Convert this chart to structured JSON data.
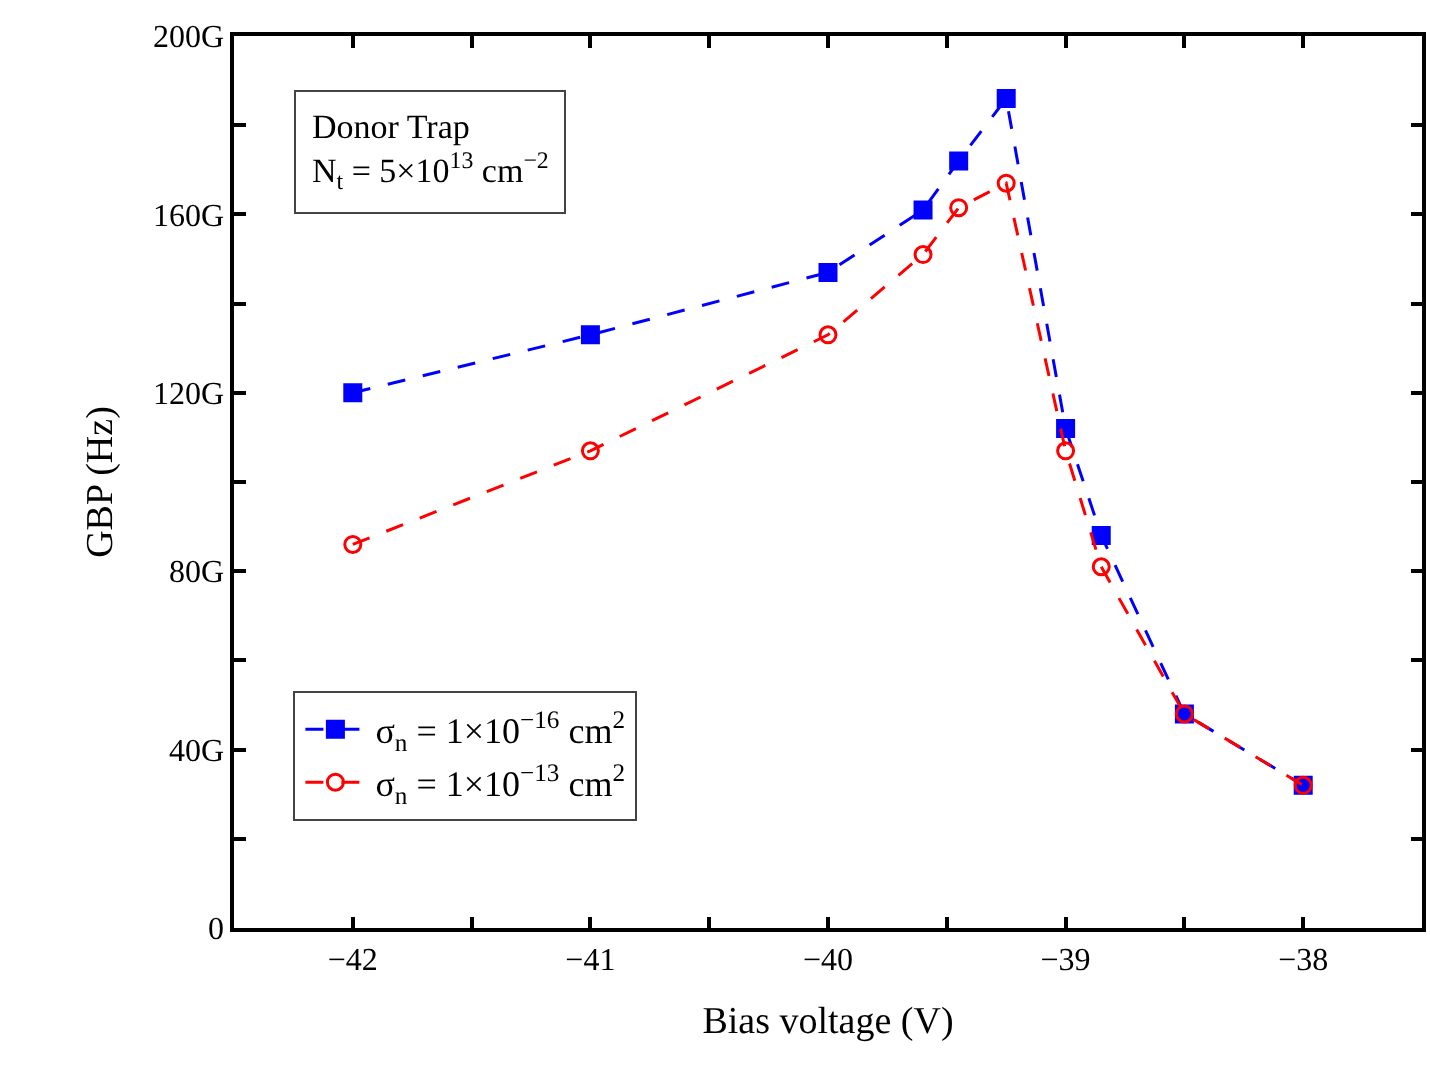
{
  "chart_data": {
    "type": "line",
    "xlabel": "Bias voltage (V)",
    "ylabel": "GBP (Hz)",
    "xlim": [
      -42.5,
      -37.5
    ],
    "xticks": [
      -42,
      {
        "value": -41.5,
        "label": null
      },
      -41,
      {
        "value": -40.5,
        "label": null
      },
      -40,
      {
        "value": -39.5,
        "label": null
      },
      -39,
      {
        "value": -38.5,
        "label": null
      },
      -38
    ],
    "ylim": [
      0,
      200
    ],
    "yticks": [
      0,
      {
        "value": 20,
        "label": null
      },
      {
        "value": 40,
        "label": "40G"
      },
      {
        "value": 60,
        "label": null
      },
      {
        "value": 80,
        "label": "80G"
      },
      {
        "value": 100,
        "label": null
      },
      {
        "value": 120,
        "label": "120G"
      },
      {
        "value": 140,
        "label": null
      },
      {
        "value": 160,
        "label": "160G"
      },
      {
        "value": 180,
        "label": null
      },
      {
        "value": 200,
        "label": "200G"
      }
    ],
    "legend": "bottom left",
    "line_style": "dashed",
    "annotations": [
      "Donor Trap",
      "N$_{t}$ = 5×10$^{13}$ cm$^{−2}$"
    ],
    "series": [
      {
        "name": "σ$_{n}$ = 1×10$^{−16}$ cm$^{2}$",
        "color": "#0000ff",
        "marker": "square",
        "x": [
          -42,
          -41,
          -40,
          -39.6,
          -39.45,
          -39.25,
          -39,
          -38.85,
          -38.5,
          -38
        ],
        "values": [
          120,
          133,
          147,
          161,
          172,
          186,
          112,
          88,
          48,
          32
        ]
      },
      {
        "name": "σ$_{n}$ = 1×10$^{−13}$ cm$^{2}$",
        "color": "#ff0000",
        "marker": "circle-open",
        "x": [
          -42,
          -41,
          -40,
          -39.6,
          -39.45,
          -39.25,
          -39,
          -38.85,
          -38.5,
          -38
        ],
        "values": [
          86,
          107,
          133,
          151,
          161.5,
          167,
          107,
          81,
          48,
          32
        ]
      }
    ]
  }
}
